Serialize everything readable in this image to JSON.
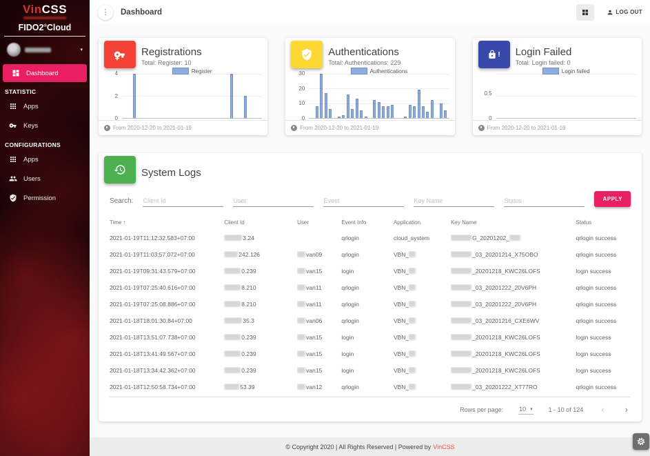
{
  "sidebar": {
    "brand": {
      "name_red": "Vin",
      "name_white": "CSS",
      "product": "FIDO2",
      "reg": "®",
      "product_suffix": "Cloud"
    },
    "user_caret": "▾",
    "dashboard_label": "Dashboard",
    "sections": [
      {
        "label": "STATISTIC",
        "items": [
          {
            "label": "Apps",
            "icon": "apps-icon"
          },
          {
            "label": "Keys",
            "icon": "key-icon"
          }
        ]
      },
      {
        "label": "CONFIGURATIONS",
        "items": [
          {
            "label": "Apps",
            "icon": "apps-icon"
          },
          {
            "label": "Users",
            "icon": "users-icon"
          },
          {
            "label": "Permission",
            "icon": "shield-check-icon"
          }
        ]
      }
    ]
  },
  "header": {
    "title": "Dashboard",
    "logout_label": "LOG OUT"
  },
  "chart_data": [
    {
      "type": "bar",
      "title": "Registrations",
      "subtitle": "Total: Register: 10",
      "legend": "Register",
      "icon": "key-plus-icon",
      "icon_color": "#f44336",
      "yticks": [
        "4",
        "2",
        "0"
      ],
      "ymax": 4,
      "xlabel": "",
      "ylabel": "",
      "x_range": [
        "2020-12-20",
        "2021-01-19"
      ],
      "footer": "From 2020-12-20 to 2021-01-19",
      "values": [
        0,
        0,
        4,
        0,
        0,
        0,
        0,
        0,
        0,
        0,
        0,
        0,
        0,
        0,
        0,
        0,
        0,
        0,
        0,
        0,
        0,
        0,
        0,
        0,
        4,
        0,
        0,
        2,
        0,
        0,
        0
      ]
    },
    {
      "type": "bar",
      "title": "Authentications",
      "subtitle": "Total: Authentications: 229",
      "legend": "Authentications",
      "icon": "shield-check-icon",
      "icon_color": "#fdd835",
      "yticks": [
        "30",
        "20",
        "10",
        "0"
      ],
      "ymax": 30,
      "xlabel": "",
      "ylabel": "",
      "x_range": [
        "2020-12-20",
        "2021-01-19"
      ],
      "footer": "From 2020-12-20 to 2021-01-19",
      "values": [
        0,
        8,
        30,
        17,
        6,
        0,
        1,
        2,
        16,
        6,
        13,
        5,
        1,
        0,
        12,
        11,
        8,
        8,
        9,
        0,
        0,
        1,
        9,
        8,
        19,
        8,
        4,
        12,
        0,
        10,
        5
      ]
    },
    {
      "type": "bar",
      "title": "Login Failed",
      "subtitle": "Total: Login failed: 0",
      "legend": "Login failed",
      "icon": "lock-icon",
      "icon_color": "#3949ab",
      "yticks": [
        "",
        "0.5",
        "0"
      ],
      "ymax": 1,
      "xlabel": "",
      "ylabel": "",
      "x_range": [
        "2020-12-20",
        "2021-01-19"
      ],
      "footer": "From 2020-12-20 to 2021-01-19",
      "values": [
        0,
        0,
        0,
        0,
        0,
        0,
        0,
        0,
        0,
        0,
        0,
        0,
        0,
        0,
        0,
        0,
        0,
        0,
        0,
        0,
        0,
        0,
        0,
        0,
        0,
        0,
        0,
        0,
        0,
        0,
        0
      ]
    }
  ],
  "bar_style": {
    "fill": "#8fabe0",
    "border": "#7191c9"
  },
  "logs": {
    "title": "System Logs",
    "icon_color": "#4caf50",
    "search": {
      "label": "Search:",
      "placeholders": [
        "Client Id",
        "User",
        "Event",
        "Key Name",
        "Status"
      ],
      "apply_label": "APPLY"
    },
    "table": {
      "headers": [
        "Time",
        "Client Id",
        "User",
        "Event Info",
        "Application",
        "Key Name",
        "Status"
      ],
      "sort_arrow": "↑",
      "rows": [
        {
          "time": "2021-01-19T11:12:32.583+07:00",
          "client": {
            "pre": 26,
            "text": "3.24"
          },
          "user": null,
          "event": "qrlogin",
          "app": {
            "text": "cloud_system"
          },
          "key": {
            "pre": 30,
            "text": "G_20201202_",
            "post": 16
          },
          "status": "qrlogin success"
        },
        {
          "time": "2021-01-19T11:03:57.072+07:00",
          "client": {
            "pre": 20,
            "text": "242.126"
          },
          "user": {
            "pre": 12,
            "text": "van09"
          },
          "event": "qrlogin",
          "app": {
            "text": "VBN_",
            "post": 10
          },
          "key": {
            "pre": 30,
            "text": "_03_20201214_X75OBO"
          },
          "status": "qrlogin success"
        },
        {
          "time": "2021-01-19T09:31:43.579+07:00",
          "client": {
            "pre": 24,
            "text": "0.239"
          },
          "user": {
            "pre": 12,
            "text": "van15"
          },
          "event": "login",
          "app": {
            "text": "VBN_",
            "post": 10
          },
          "key": {
            "pre": 30,
            "text": "_20201218_KWC26LOFS"
          },
          "status": "login success"
        },
        {
          "time": "2021-01-19T07:25:40.616+07:00",
          "client": {
            "pre": 24,
            "text": "8.210"
          },
          "user": {
            "pre": 12,
            "text": "van11"
          },
          "event": "qrlogin",
          "app": {
            "text": "VBN_",
            "post": 10
          },
          "key": {
            "pre": 30,
            "text": "_03_20201222_20V6PH"
          },
          "status": "qrlogin success"
        },
        {
          "time": "2021-01-19T07:25:08.886+07:00",
          "client": {
            "pre": 24,
            "text": "8.210"
          },
          "user": {
            "pre": 12,
            "text": "van11"
          },
          "event": "qrlogin",
          "app": {
            "text": "VBN_",
            "post": 10
          },
          "key": {
            "pre": 30,
            "text": "_03_20201222_20V6PH"
          },
          "status": "qrlogin success"
        },
        {
          "time": "2021-01-18T18:01:30.84+07:00",
          "client": {
            "pre": 26,
            "text": "35.3"
          },
          "user": {
            "pre": 12,
            "text": "van06"
          },
          "event": "qrlogin",
          "app": {
            "text": "VBN_",
            "post": 10
          },
          "key": {
            "pre": 30,
            "text": "_03_20201216_CXE6WV"
          },
          "status": "qrlogin success"
        },
        {
          "time": "2021-01-18T13:51:07.738+07:00",
          "client": {
            "pre": 24,
            "text": "0.239"
          },
          "user": {
            "pre": 12,
            "text": "van15"
          },
          "event": "login",
          "app": {
            "text": "VBN_",
            "post": 10
          },
          "key": {
            "pre": 30,
            "text": "_20201218_KWC26LOFS"
          },
          "status": "login success"
        },
        {
          "time": "2021-01-18T13:41:49.567+07:00",
          "client": {
            "pre": 24,
            "text": "0.239"
          },
          "user": {
            "pre": 12,
            "text": "van15"
          },
          "event": "login",
          "app": {
            "text": "VBN_",
            "post": 10
          },
          "key": {
            "pre": 30,
            "text": "_20201218_KWC26LOFS"
          },
          "status": "login success"
        },
        {
          "time": "2021-01-18T13:34:42.362+07:00",
          "client": {
            "pre": 24,
            "text": "0.239"
          },
          "user": {
            "pre": 12,
            "text": "van15"
          },
          "event": "login",
          "app": {
            "text": "VBN_",
            "post": 10
          },
          "key": {
            "pre": 30,
            "text": "_20201218_KWC26LOFS"
          },
          "status": "login success"
        },
        {
          "time": "2021-01-18T12:50:58.734+07:00",
          "client": {
            "pre": 22,
            "text": "53.39"
          },
          "user": {
            "pre": 12,
            "text": "van12"
          },
          "event": "qrlogin",
          "app": {
            "text": "VBN_",
            "post": 10
          },
          "key": {
            "pre": 30,
            "text": "_03_20201222_XT77RO"
          },
          "status": "qrlogin success"
        }
      ],
      "pagination": {
        "rows_per_page_label": "Rows per page:",
        "rows_per_page_value": "10",
        "caret": "▾",
        "range_label": "1 - 10 of 124",
        "prev": "‹",
        "next": "›"
      }
    }
  },
  "footer": {
    "text": "© Copyright 2020 | All Rights Reserved | Powered by",
    "brand": "VinCSS"
  },
  "colors": {
    "accent_pink": "#e91e63",
    "card_red": "#f44336",
    "card_yellow": "#fdd835",
    "card_indigo": "#3949ab",
    "card_green": "#4caf50",
    "footer_brand": "#ef5350"
  }
}
